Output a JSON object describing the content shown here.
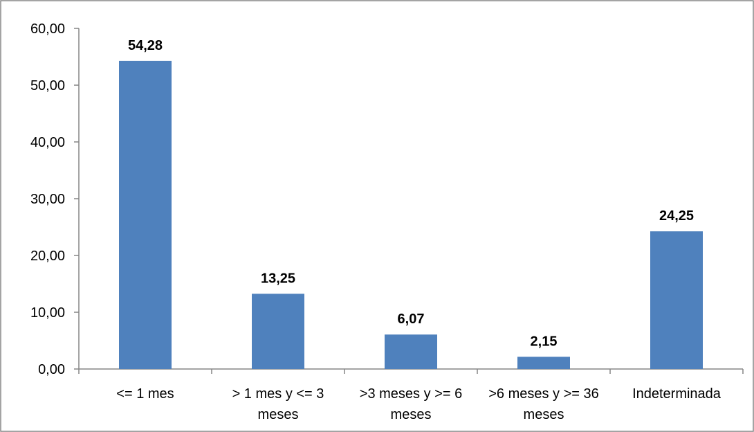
{
  "chart_data": {
    "type": "bar",
    "title": "",
    "xlabel": "",
    "ylabel": "",
    "categories": [
      [
        "<= 1 mes"
      ],
      [
        "> 1 mes y <= 3",
        "meses"
      ],
      [
        ">3 meses y >= 6",
        "meses"
      ],
      [
        ">6 meses y >= 36",
        "meses"
      ],
      [
        "Indeterminada"
      ]
    ],
    "values": [
      54.28,
      13.25,
      6.07,
      2.15,
      24.25
    ],
    "value_labels": [
      "54,28",
      "13,25",
      "6,07",
      "2,15",
      "24,25"
    ],
    "ylim": [
      0,
      60
    ],
    "yticks": [
      0,
      10,
      20,
      30,
      40,
      50,
      60
    ],
    "ytick_labels": [
      "0,00",
      "10,00",
      "20,00",
      "30,00",
      "40,00",
      "50,00",
      "60,00"
    ],
    "grid": false,
    "legend": "none",
    "bar_color": "#4f81bd",
    "border_color": "#868686"
  }
}
